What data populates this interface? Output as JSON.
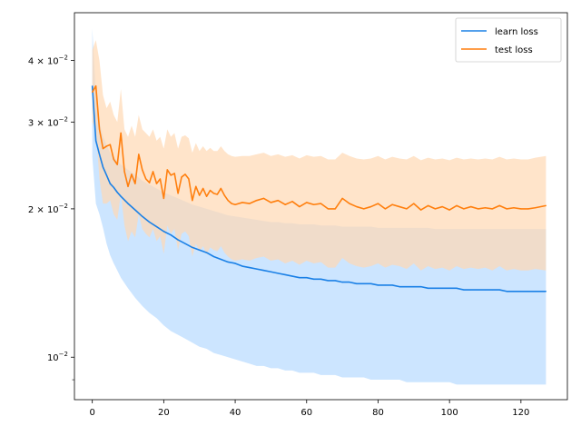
{
  "chart_data": {
    "type": "line",
    "title": "",
    "xlabel": "",
    "ylabel": "",
    "yscale": "log",
    "xlim": [
      -5,
      133
    ],
    "ylim": [
      0.0082,
      0.05
    ],
    "grid": false,
    "legend_position": "top-right",
    "xticks": [
      0,
      20,
      40,
      60,
      80,
      100,
      120
    ],
    "xtick_labels": [
      "0",
      "20",
      "40",
      "60",
      "80",
      "100",
      "120"
    ],
    "yticks": [
      0.01,
      0.02,
      0.03,
      0.04
    ],
    "ytick_labels": [
      {
        "base": "10",
        "exp": "−2"
      },
      {
        "base": "2 × 10",
        "exp": "−2"
      },
      {
        "base": "3 × 10",
        "exp": "−2"
      },
      {
        "base": "4 × 10",
        "exp": "−2"
      }
    ],
    "series": [
      {
        "name": "learn loss",
        "color": "#1a80e6",
        "band_color": "#cce5ff",
        "x": [
          0,
          1,
          2,
          3,
          4,
          5,
          6,
          7,
          8,
          10,
          12,
          14,
          16,
          18,
          20,
          22,
          24,
          26,
          28,
          30,
          32,
          34,
          36,
          38,
          40,
          42,
          44,
          46,
          48,
          50,
          52,
          54,
          56,
          58,
          60,
          62,
          64,
          66,
          68,
          70,
          72,
          74,
          76,
          78,
          80,
          82,
          84,
          86,
          88,
          90,
          92,
          94,
          96,
          98,
          100,
          102,
          104,
          106,
          108,
          110,
          112,
          114,
          116,
          118,
          120,
          122,
          124,
          127
        ],
        "values": [
          0.0355,
          0.0275,
          0.0258,
          0.0243,
          0.0234,
          0.0225,
          0.0221,
          0.0216,
          0.0212,
          0.0205,
          0.0199,
          0.0193,
          0.0188,
          0.0184,
          0.018,
          0.0177,
          0.0173,
          0.017,
          0.0167,
          0.0165,
          0.0163,
          0.016,
          0.0158,
          0.0156,
          0.0155,
          0.0153,
          0.0152,
          0.0151,
          0.015,
          0.0149,
          0.0148,
          0.0147,
          0.0146,
          0.0145,
          0.0145,
          0.0144,
          0.0144,
          0.0143,
          0.0143,
          0.0142,
          0.0142,
          0.0141,
          0.0141,
          0.0141,
          0.014,
          0.014,
          0.014,
          0.0139,
          0.0139,
          0.0139,
          0.0139,
          0.0138,
          0.0138,
          0.0138,
          0.0138,
          0.0138,
          0.0137,
          0.0137,
          0.0137,
          0.0137,
          0.0137,
          0.0137,
          0.0136,
          0.0136,
          0.0136,
          0.0136,
          0.0136,
          0.0136
        ],
        "band_upper": [
          0.0465,
          0.034,
          0.03,
          0.028,
          0.027,
          0.026,
          0.0255,
          0.025,
          0.0246,
          0.024,
          0.0235,
          0.0228,
          0.0224,
          0.022,
          0.0216,
          0.0213,
          0.021,
          0.0207,
          0.0204,
          0.0202,
          0.02,
          0.0198,
          0.0196,
          0.0194,
          0.0193,
          0.0192,
          0.0191,
          0.019,
          0.0189,
          0.0188,
          0.0188,
          0.0187,
          0.0187,
          0.0186,
          0.0186,
          0.0186,
          0.0185,
          0.0185,
          0.0185,
          0.0184,
          0.0184,
          0.0184,
          0.0184,
          0.0184,
          0.0183,
          0.0183,
          0.0183,
          0.0183,
          0.0183,
          0.0183,
          0.0183,
          0.0183,
          0.0182,
          0.0182,
          0.0182,
          0.0182,
          0.0182,
          0.0182,
          0.0182,
          0.0182,
          0.0182,
          0.0182,
          0.0182,
          0.0182,
          0.0182,
          0.0182,
          0.0182,
          0.0182
        ],
        "band_lower": [
          0.0255,
          0.0205,
          0.0195,
          0.0183,
          0.017,
          0.0161,
          0.0155,
          0.015,
          0.0145,
          0.0138,
          0.0132,
          0.0127,
          0.0123,
          0.012,
          0.0116,
          0.0113,
          0.0111,
          0.0109,
          0.0107,
          0.0105,
          0.0104,
          0.0102,
          0.0101,
          0.01,
          0.0099,
          0.0098,
          0.0097,
          0.0096,
          0.0096,
          0.0095,
          0.0095,
          0.0094,
          0.0094,
          0.0093,
          0.0093,
          0.0093,
          0.0092,
          0.0092,
          0.0092,
          0.0091,
          0.0091,
          0.0091,
          0.0091,
          0.009,
          0.009,
          0.009,
          0.009,
          0.009,
          0.0089,
          0.0089,
          0.0089,
          0.0089,
          0.0089,
          0.0089,
          0.0089,
          0.0088,
          0.0088,
          0.0088,
          0.0088,
          0.0088,
          0.0088,
          0.0088,
          0.0088,
          0.0088,
          0.0088,
          0.0088,
          0.0088,
          0.0088
        ]
      },
      {
        "name": "test loss",
        "color": "#ff7f0e",
        "band_color": "#ffd9b3",
        "x": [
          0,
          1,
          2,
          3,
          4,
          5,
          6,
          7,
          8,
          9,
          10,
          11,
          12,
          13,
          14,
          15,
          16,
          17,
          18,
          19,
          20,
          21,
          22,
          23,
          24,
          25,
          26,
          27,
          28,
          29,
          30,
          31,
          32,
          33,
          34,
          35,
          36,
          37,
          38,
          39,
          40,
          42,
          44,
          46,
          48,
          50,
          52,
          54,
          56,
          58,
          60,
          62,
          64,
          66,
          68,
          70,
          72,
          74,
          76,
          78,
          80,
          82,
          84,
          86,
          88,
          90,
          92,
          94,
          96,
          98,
          100,
          102,
          104,
          106,
          108,
          110,
          112,
          114,
          116,
          118,
          120,
          122,
          124,
          127
        ],
        "values": [
          0.0345,
          0.0355,
          0.029,
          0.0265,
          0.0268,
          0.027,
          0.0252,
          0.0246,
          0.0285,
          0.0238,
          0.0222,
          0.0235,
          0.0225,
          0.0258,
          0.024,
          0.023,
          0.0226,
          0.0238,
          0.0225,
          0.023,
          0.021,
          0.024,
          0.0234,
          0.0236,
          0.0215,
          0.0232,
          0.0235,
          0.023,
          0.0208,
          0.0222,
          0.0213,
          0.022,
          0.0212,
          0.0218,
          0.0215,
          0.0214,
          0.022,
          0.0213,
          0.0208,
          0.0205,
          0.0204,
          0.0206,
          0.0205,
          0.0208,
          0.021,
          0.0206,
          0.0208,
          0.0204,
          0.0207,
          0.0202,
          0.0206,
          0.0204,
          0.0205,
          0.02,
          0.02,
          0.021,
          0.0205,
          0.0202,
          0.02,
          0.0202,
          0.0205,
          0.02,
          0.0204,
          0.0202,
          0.02,
          0.0205,
          0.0199,
          0.0203,
          0.02,
          0.0202,
          0.0199,
          0.0203,
          0.02,
          0.0202,
          0.02,
          0.0201,
          0.02,
          0.0203,
          0.02,
          0.0201,
          0.02,
          0.02,
          0.0201,
          0.0203
        ],
        "band_upper": [
          0.042,
          0.044,
          0.04,
          0.034,
          0.032,
          0.033,
          0.031,
          0.03,
          0.035,
          0.029,
          0.028,
          0.0295,
          0.028,
          0.031,
          0.029,
          0.0285,
          0.028,
          0.029,
          0.0275,
          0.028,
          0.0265,
          0.029,
          0.028,
          0.0285,
          0.0265,
          0.028,
          0.0282,
          0.0278,
          0.026,
          0.0272,
          0.0262,
          0.0268,
          0.0262,
          0.0266,
          0.0262,
          0.0262,
          0.0268,
          0.0262,
          0.0258,
          0.0256,
          0.0255,
          0.0256,
          0.0256,
          0.0258,
          0.026,
          0.0256,
          0.0258,
          0.0255,
          0.0257,
          0.0253,
          0.0257,
          0.0255,
          0.0256,
          0.0252,
          0.0252,
          0.026,
          0.0256,
          0.0253,
          0.0252,
          0.0253,
          0.0256,
          0.0252,
          0.0255,
          0.0253,
          0.0252,
          0.0256,
          0.0251,
          0.0254,
          0.0252,
          0.0253,
          0.0251,
          0.0254,
          0.0252,
          0.0253,
          0.0252,
          0.0253,
          0.0252,
          0.0255,
          0.0252,
          0.0253,
          0.0252,
          0.0252,
          0.0254,
          0.0256
        ],
        "band_lower": [
          0.03,
          0.029,
          0.023,
          0.0205,
          0.0205,
          0.0208,
          0.0195,
          0.019,
          0.0215,
          0.0185,
          0.0172,
          0.018,
          0.0175,
          0.0195,
          0.0182,
          0.0178,
          0.0175,
          0.0182,
          0.0172,
          0.0176,
          0.0162,
          0.0185,
          0.0178,
          0.0182,
          0.0165,
          0.0178,
          0.018,
          0.0176,
          0.016,
          0.017,
          0.0164,
          0.0168,
          0.0162,
          0.0167,
          0.0165,
          0.0164,
          0.0168,
          0.0163,
          0.016,
          0.0158,
          0.0157,
          0.0158,
          0.0157,
          0.0159,
          0.016,
          0.0157,
          0.0158,
          0.0155,
          0.0157,
          0.0154,
          0.0157,
          0.0155,
          0.0156,
          0.0152,
          0.0152,
          0.0159,
          0.0155,
          0.0153,
          0.0152,
          0.0153,
          0.0155,
          0.0152,
          0.0154,
          0.0153,
          0.0151,
          0.0155,
          0.015,
          0.0153,
          0.0151,
          0.0152,
          0.015,
          0.0153,
          0.0151,
          0.0152,
          0.0151,
          0.0152,
          0.015,
          0.0153,
          0.015,
          0.0151,
          0.015,
          0.015,
          0.0151,
          0.015
        ]
      }
    ]
  }
}
